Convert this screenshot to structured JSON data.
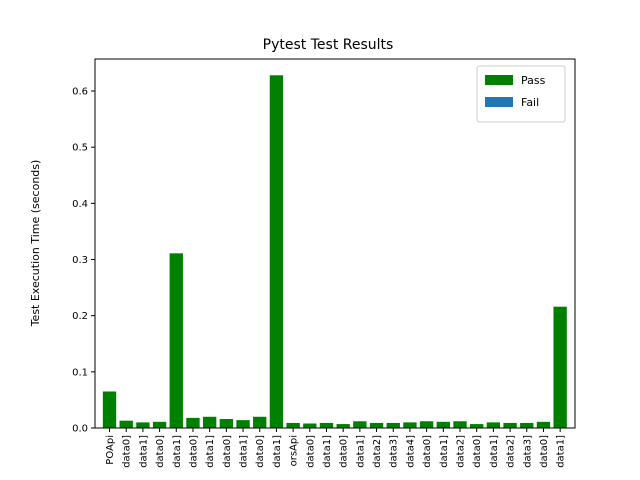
{
  "chart_data": {
    "type": "bar",
    "title": "Pytest Test Results",
    "ylabel": "Test Execution Time (seconds)",
    "categories": [
      "POApi",
      "data0]",
      "data1]",
      "data0]",
      "data1]",
      "data0]",
      "data1]",
      "data0]",
      "data1]",
      "data0]",
      "data1]",
      "orsApi",
      "data0]",
      "data1]",
      "data0]",
      "data1]",
      "data2]",
      "data3]",
      "data4]",
      "data0]",
      "data1]",
      "data2]",
      "data0]",
      "data1]",
      "data2]",
      "data3]",
      "data0]",
      "data1]"
    ],
    "series": [
      {
        "name": "Pass",
        "color": "#008000",
        "values": [
          0.065,
          0.013,
          0.01,
          0.011,
          0.311,
          0.018,
          0.02,
          0.016,
          0.014,
          0.02,
          0.628,
          0.009,
          0.008,
          0.009,
          0.007,
          0.012,
          0.009,
          0.009,
          0.01,
          0.012,
          0.011,
          0.012,
          0.007,
          0.01,
          0.009,
          0.009,
          0.011,
          0.216
        ]
      },
      {
        "name": "Fail",
        "color": "#1f77b4",
        "values": [
          null,
          null,
          null,
          null,
          null,
          null,
          null,
          null,
          null,
          null,
          null,
          null,
          null,
          null,
          null,
          null,
          null,
          null,
          null,
          null,
          null,
          null,
          null,
          null,
          null,
          null,
          null,
          null
        ]
      }
    ],
    "ylim": [
      0,
      0.657
    ],
    "yticks": [
      {
        "value": 0,
        "label": "0.0"
      },
      0.1,
      0.2,
      0.3,
      0.4,
      0.5,
      0.6
    ],
    "legend": "upper right"
  }
}
